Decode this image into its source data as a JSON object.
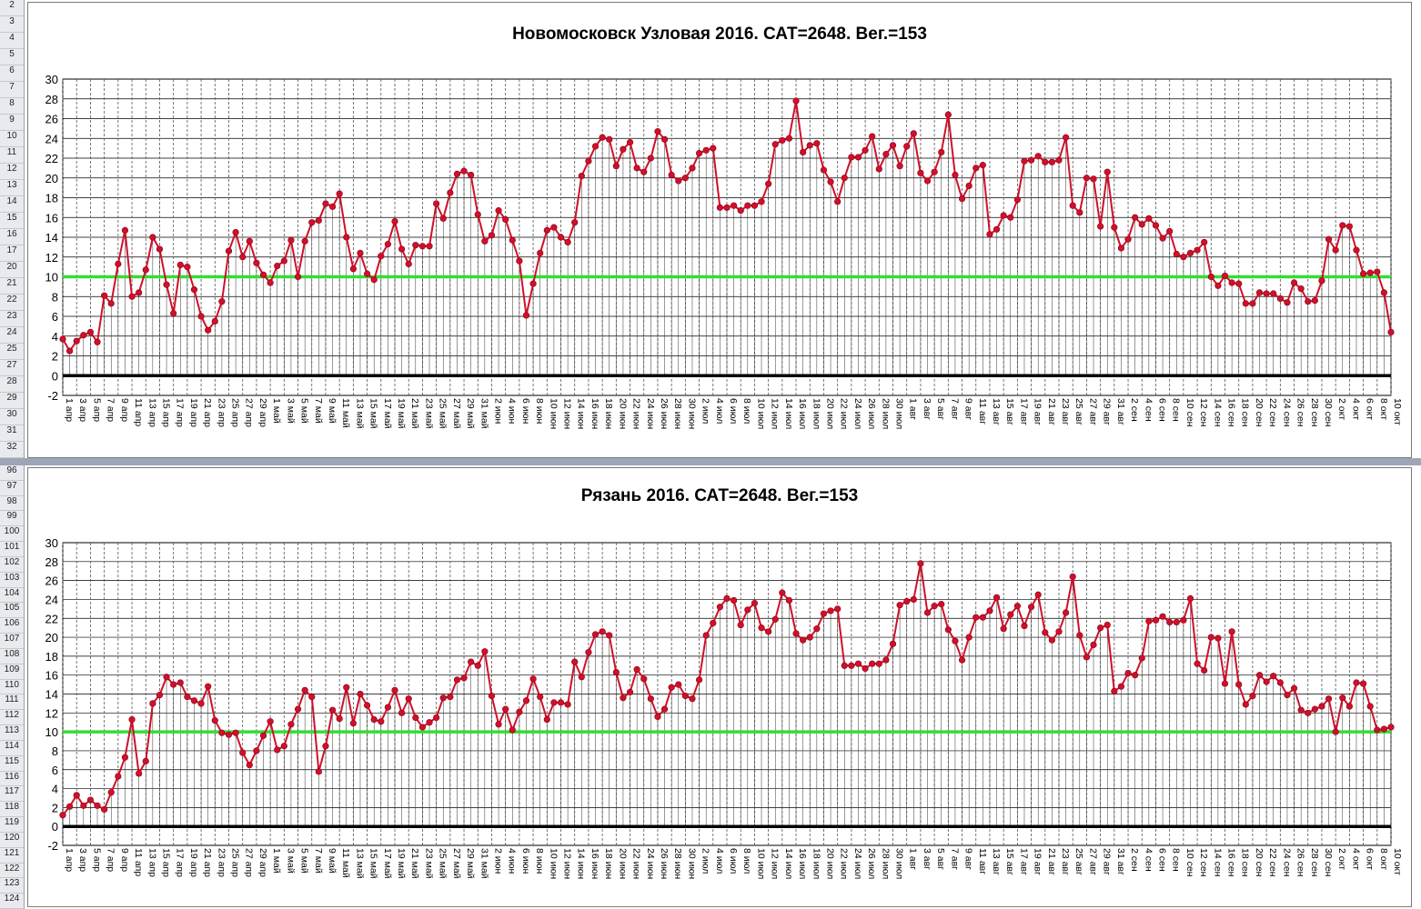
{
  "sheet": {
    "row_headers_top": [
      "2",
      "3",
      "4",
      "5",
      "6",
      "7",
      "8",
      "9",
      "10",
      "11",
      "12",
      "13",
      "14",
      "15",
      "16",
      "17",
      "20",
      "21",
      "22",
      "23",
      "24",
      "25",
      "27",
      "28",
      "29",
      "30",
      "31",
      "32"
    ],
    "row_headers_bottom": [
      "96",
      "97",
      "98",
      "99",
      "100",
      "101",
      "102",
      "103",
      "104",
      "105",
      "106",
      "107",
      "108",
      "109",
      "110",
      "111",
      "112",
      "113",
      "114",
      "115",
      "116",
      "117",
      "118",
      "119",
      "120",
      "121",
      "122",
      "123",
      "124"
    ]
  },
  "chart_data": [
    {
      "type": "line",
      "title": "Новомосковск Узловая 2016. САТ=2648. Вег.=153",
      "xlabel": "",
      "ylabel": "",
      "ylim": [
        -2,
        30
      ],
      "yticks": [
        "30",
        "28",
        "26",
        "24",
        "22",
        "20",
        "18",
        "16",
        "14",
        "12",
        "10",
        "8",
        "6",
        "4",
        "2",
        "0",
        "-2"
      ],
      "grid": true,
      "x_start": "1 апр",
      "x_end": "10 окт",
      "xtick_labels": [
        "1 апр",
        "3 апр",
        "5 апр",
        "7 апр",
        "9 апр",
        "11 апр",
        "13 апр",
        "15 апр",
        "17 апр",
        "19 апр",
        "21 апр",
        "23 апр",
        "25 апр",
        "27 апр",
        "29 апр",
        "1 май",
        "3 май",
        "5 май",
        "7 май",
        "9 май",
        "11 май",
        "13 май",
        "15 май",
        "17 май",
        "19 май",
        "21 май",
        "23 май",
        "25 май",
        "27 май",
        "29 май",
        "31 май",
        "2 июн",
        "4 июн",
        "6 июн",
        "8 июн",
        "10 июн",
        "12 июн",
        "14 июн",
        "16 июн",
        "18 июн",
        "20 июн",
        "22 июн",
        "24 июн",
        "26 июн",
        "28 июн",
        "30 июн",
        "2 июл",
        "4 июл",
        "6 июл",
        "8 июл",
        "10 июл",
        "12 июл",
        "14 июл",
        "16 июл",
        "18 июл",
        "20 июл",
        "22 июл",
        "24 июл",
        "26 июл",
        "28 июл",
        "30 июл",
        "1 авг",
        "3 авг",
        "5 авг",
        "7 авг",
        "9 авг",
        "11 авг",
        "13 авг",
        "15 авг",
        "17 авг",
        "19 авг",
        "21 авг",
        "23 авг",
        "25 авг",
        "27 авг",
        "29 авг",
        "31 авг",
        "2 сен",
        "4 сен",
        "6 сен",
        "8 сен",
        "10 сен",
        "12 сен",
        "14 сен",
        "16 сен",
        "18 сен",
        "20 сен",
        "22 сен",
        "24 сен",
        "26 сен",
        "28 сен",
        "30 сен",
        "2 окт",
        "4 окт",
        "6 окт",
        "8 окт",
        "10 окт"
      ],
      "threshold": {
        "value": 10,
        "color": "#33dd33"
      },
      "baseline": {
        "value": 0,
        "color": "#000000"
      },
      "series_color": "#d0102a",
      "series": [
        {
          "values": [
            3.7,
            2.5,
            3.5,
            4.1,
            4.4,
            3.4,
            8.1,
            7.3,
            11.3,
            14.7,
            8.0,
            8.4,
            10.7,
            14.0,
            12.8,
            9.2,
            6.3,
            11.2,
            11.0,
            8.7,
            6.0,
            4.6,
            5.5,
            7.5,
            12.6,
            14.5,
            12.0,
            13.6,
            11.4,
            10.2,
            9.4,
            11.1,
            11.6,
            13.7,
            10.0,
            13.6,
            15.5,
            15.7,
            17.4,
            17.1,
            18.4,
            14.0,
            10.8,
            12.4,
            10.3,
            9.7,
            12.1,
            13.3,
            15.6,
            12.8,
            11.3,
            13.2,
            13.1,
            13.1,
            17.4,
            15.9,
            18.5,
            20.4,
            20.7,
            20.3,
            16.3,
            13.6,
            14.2,
            16.7,
            15.8,
            13.7,
            11.6,
            6.1,
            9.3,
            12.4,
            14.7,
            15.0,
            14.0,
            13.5,
            15.5,
            20.2,
            21.7,
            23.2,
            24.1,
            23.9,
            21.2,
            22.9,
            23.6,
            21.0,
            20.6,
            22.0,
            24.7,
            23.9,
            20.3,
            19.7,
            20.0,
            21.0,
            22.5,
            22.8,
            23.0,
            17.0,
            17.0,
            17.2,
            16.7,
            17.2,
            17.2,
            17.6,
            19.4,
            23.4,
            23.8,
            24.0,
            27.8,
            22.6,
            23.3,
            23.5,
            20.8,
            19.6,
            17.6,
            20.0,
            22.1,
            22.1,
            22.8,
            24.2,
            20.9,
            22.4,
            23.3,
            21.2,
            23.2,
            24.5,
            20.5,
            19.7,
            20.6,
            22.6,
            26.4,
            20.3,
            17.9,
            19.2,
            21.0,
            21.3,
            14.3,
            14.8,
            16.2,
            16.0,
            17.8,
            21.7,
            21.8,
            22.2,
            21.6,
            21.6,
            21.8,
            24.1,
            17.2,
            16.5,
            20.0,
            19.9,
            15.1,
            20.6,
            15.0,
            12.9,
            13.8,
            16.0,
            15.3,
            15.9,
            15.2,
            13.9,
            14.6,
            12.3,
            12.0,
            12.4,
            12.7,
            13.5,
            10.0,
            9.1,
            10.1,
            9.4,
            9.3,
            7.3,
            7.3,
            8.4,
            8.3,
            8.3,
            7.8,
            7.4,
            9.4,
            8.8,
            7.5,
            7.6,
            9.6,
            13.8,
            12.7,
            15.2,
            15.1,
            12.7,
            10.3,
            10.4,
            10.5,
            8.4,
            4.4
          ]
        }
      ]
    },
    {
      "type": "line",
      "title": "Рязань 2016. САТ=2648. Вег.=153",
      "xlabel": "",
      "ylabel": "",
      "ylim": [
        -2,
        30
      ],
      "yticks": [
        "30",
        "28",
        "26",
        "24",
        "22",
        "20",
        "18",
        "16",
        "14",
        "12",
        "10",
        "8",
        "6",
        "4",
        "2",
        "0",
        "-2"
      ],
      "grid": true,
      "x_start": "1 апр",
      "x_end": "10 окт",
      "xtick_labels": [
        "1 апр",
        "3 апр",
        "5 апр",
        "7 апр",
        "9 апр",
        "11 апр",
        "13 апр",
        "15 апр",
        "17 апр",
        "19 апр",
        "21 апр",
        "23 апр",
        "25 апр",
        "27 апр",
        "29 апр",
        "1 май",
        "3 май",
        "5 май",
        "7 май",
        "9 май",
        "11 май",
        "13 май",
        "15 май",
        "17 май",
        "19 май",
        "21 май",
        "23 май",
        "25 май",
        "27 май",
        "29 май",
        "31 май",
        "2 июн",
        "4 июн",
        "6 июн",
        "8 июн",
        "10 июн",
        "12 июн",
        "14 июн",
        "16 июн",
        "18 июн",
        "20 июн",
        "22 июн",
        "24 июн",
        "26 июн",
        "28 июн",
        "30 июн",
        "2 июл",
        "4 июл",
        "6 июл",
        "8 июл",
        "10 июл",
        "12 июл",
        "14 июл",
        "16 июл",
        "18 июл",
        "20 июл",
        "22 июл",
        "24 июл",
        "26 июл",
        "28 июл",
        "30 июл",
        "1 авг",
        "3 авг",
        "5 авг",
        "7 авг",
        "9 авг",
        "11 авг",
        "13 авг",
        "15 авг",
        "17 авг",
        "19 авг",
        "21 авг",
        "23 авг",
        "25 авг",
        "27 авг",
        "29 авг",
        "31 авг",
        "2 сен",
        "4 сен",
        "6 сен",
        "8 сен",
        "10 сен",
        "12 сен",
        "14 сен",
        "16 сен",
        "18 сен",
        "20 сен",
        "22 сен",
        "24 сен",
        "26 сен",
        "28 сен",
        "30 сен",
        "2 окт",
        "4 окт",
        "6 окт",
        "8 окт",
        "10 окт"
      ],
      "threshold": {
        "value": 10,
        "color": "#33dd33"
      },
      "baseline": {
        "value": 0,
        "color": "#000000"
      },
      "series_color": "#d0102a",
      "series": [
        {
          "values": [
            1.2,
            2.1,
            3.3,
            2.2,
            2.8,
            2.2,
            1.8,
            3.6,
            5.3,
            7.3,
            11.3,
            5.6,
            6.9,
            13.0,
            13.9,
            15.8,
            15.0,
            15.2,
            13.7,
            13.3,
            13.0,
            14.8,
            11.2,
            9.9,
            9.7,
            9.9,
            7.8,
            6.5,
            8.0,
            9.6,
            11.1,
            8.1,
            8.5,
            10.8,
            12.4,
            14.4,
            13.7,
            5.8,
            8.5,
            12.3,
            11.4,
            14.7,
            10.9,
            14.0,
            12.8,
            11.3,
            11.1,
            12.6,
            14.4,
            12.0,
            13.5,
            11.5,
            10.5,
            11.0,
            11.5,
            13.6,
            13.7,
            15.5,
            15.7,
            17.4,
            17.0,
            18.5,
            13.8,
            10.8,
            12.4,
            10.2,
            12.1,
            13.3,
            15.6,
            13.7,
            11.3,
            13.1,
            13.1,
            12.9,
            17.4,
            15.8,
            18.4,
            20.3,
            20.6,
            20.2,
            16.3,
            13.6,
            14.2,
            16.6,
            15.6,
            13.5,
            11.6,
            12.4,
            14.7,
            15.0,
            13.8,
            13.5,
            15.5,
            20.2,
            21.5,
            23.2,
            24.1,
            23.9,
            21.3,
            22.9,
            23.6,
            21.0,
            20.6,
            21.9,
            24.7,
            23.9,
            20.4,
            19.7,
            20.0,
            20.9,
            22.5,
            22.8,
            23.0,
            17.0,
            17.0,
            17.2,
            16.7,
            17.2,
            17.2,
            17.6,
            19.3,
            23.4,
            23.8,
            24.0,
            27.8,
            22.6,
            23.3,
            23.5,
            20.8,
            19.6,
            17.6,
            20.0,
            22.1,
            22.1,
            22.8,
            24.2,
            20.9,
            22.4,
            23.3,
            21.2,
            23.2,
            24.5,
            20.5,
            19.7,
            20.6,
            22.6,
            26.4,
            20.2,
            17.9,
            19.2,
            21.0,
            21.3,
            14.3,
            14.8,
            16.2,
            16.0,
            17.8,
            21.7,
            21.8,
            22.2,
            21.6,
            21.6,
            21.8,
            24.1,
            17.2,
            16.5,
            20.0,
            19.9,
            15.1,
            20.6,
            15.0,
            12.9,
            13.8,
            16.0,
            15.3,
            15.9,
            15.2,
            13.9,
            14.6,
            12.3,
            12.0,
            12.4,
            12.7,
            13.5,
            10.0,
            13.6,
            12.7,
            15.2,
            15.1,
            12.7,
            10.2,
            10.3,
            10.5
          ]
        }
      ]
    }
  ]
}
